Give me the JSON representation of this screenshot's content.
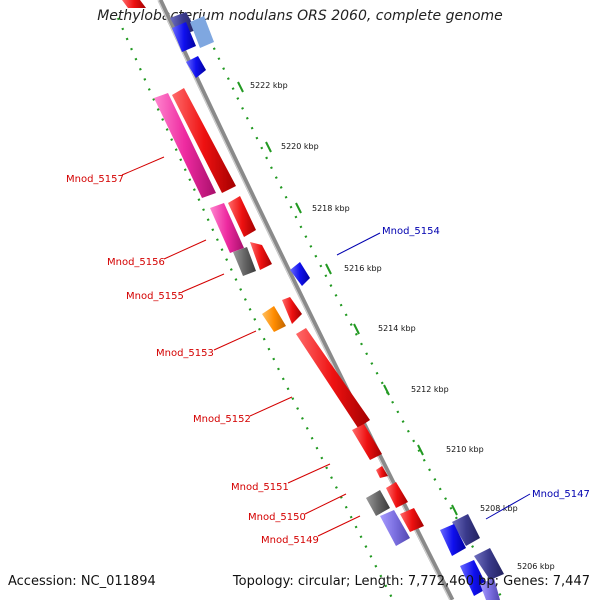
{
  "title": "Methylobacterium nodulans ORS 2060, complete genome",
  "footer": {
    "accession": "Accession: NC_011894",
    "summary": "Topology: circular; Length: 7,772,460 bp; Genes: 7,447"
  },
  "ticks": [
    "5222 kbp",
    "5220 kbp",
    "5218 kbp",
    "5216 kbp",
    "5214 kbp",
    "5212 kbp",
    "5210 kbp",
    "5208 kbp",
    "5206 kbp"
  ],
  "gene_labels": [
    {
      "text": "Mnod_5157",
      "color": "#d40000"
    },
    {
      "text": "Mnod_5156",
      "color": "#d40000"
    },
    {
      "text": "Mnod_5155",
      "color": "#d40000"
    },
    {
      "text": "Mnod_5153",
      "color": "#d40000"
    },
    {
      "text": "Mnod_5152",
      "color": "#d40000"
    },
    {
      "text": "Mnod_5151",
      "color": "#d40000"
    },
    {
      "text": "Mnod_5150",
      "color": "#d40000"
    },
    {
      "text": "Mnod_5149",
      "color": "#d40000"
    },
    {
      "text": "Mnod_5154",
      "color": "#0000b0"
    },
    {
      "text": "Mnod_5147",
      "color": "#0000b0"
    }
  ],
  "colors": {
    "forward_gene": "#ee1111",
    "pink_gene": "#ee2aa0",
    "gray_gene": "#666666",
    "orange_gene": "#ff8c00",
    "reverse_gene": "#1010ee",
    "slate_gene": "#3a3a8c",
    "lavender_gene": "#7b6fe0",
    "backbone": "#8a8a8a",
    "guide": "#229922"
  }
}
